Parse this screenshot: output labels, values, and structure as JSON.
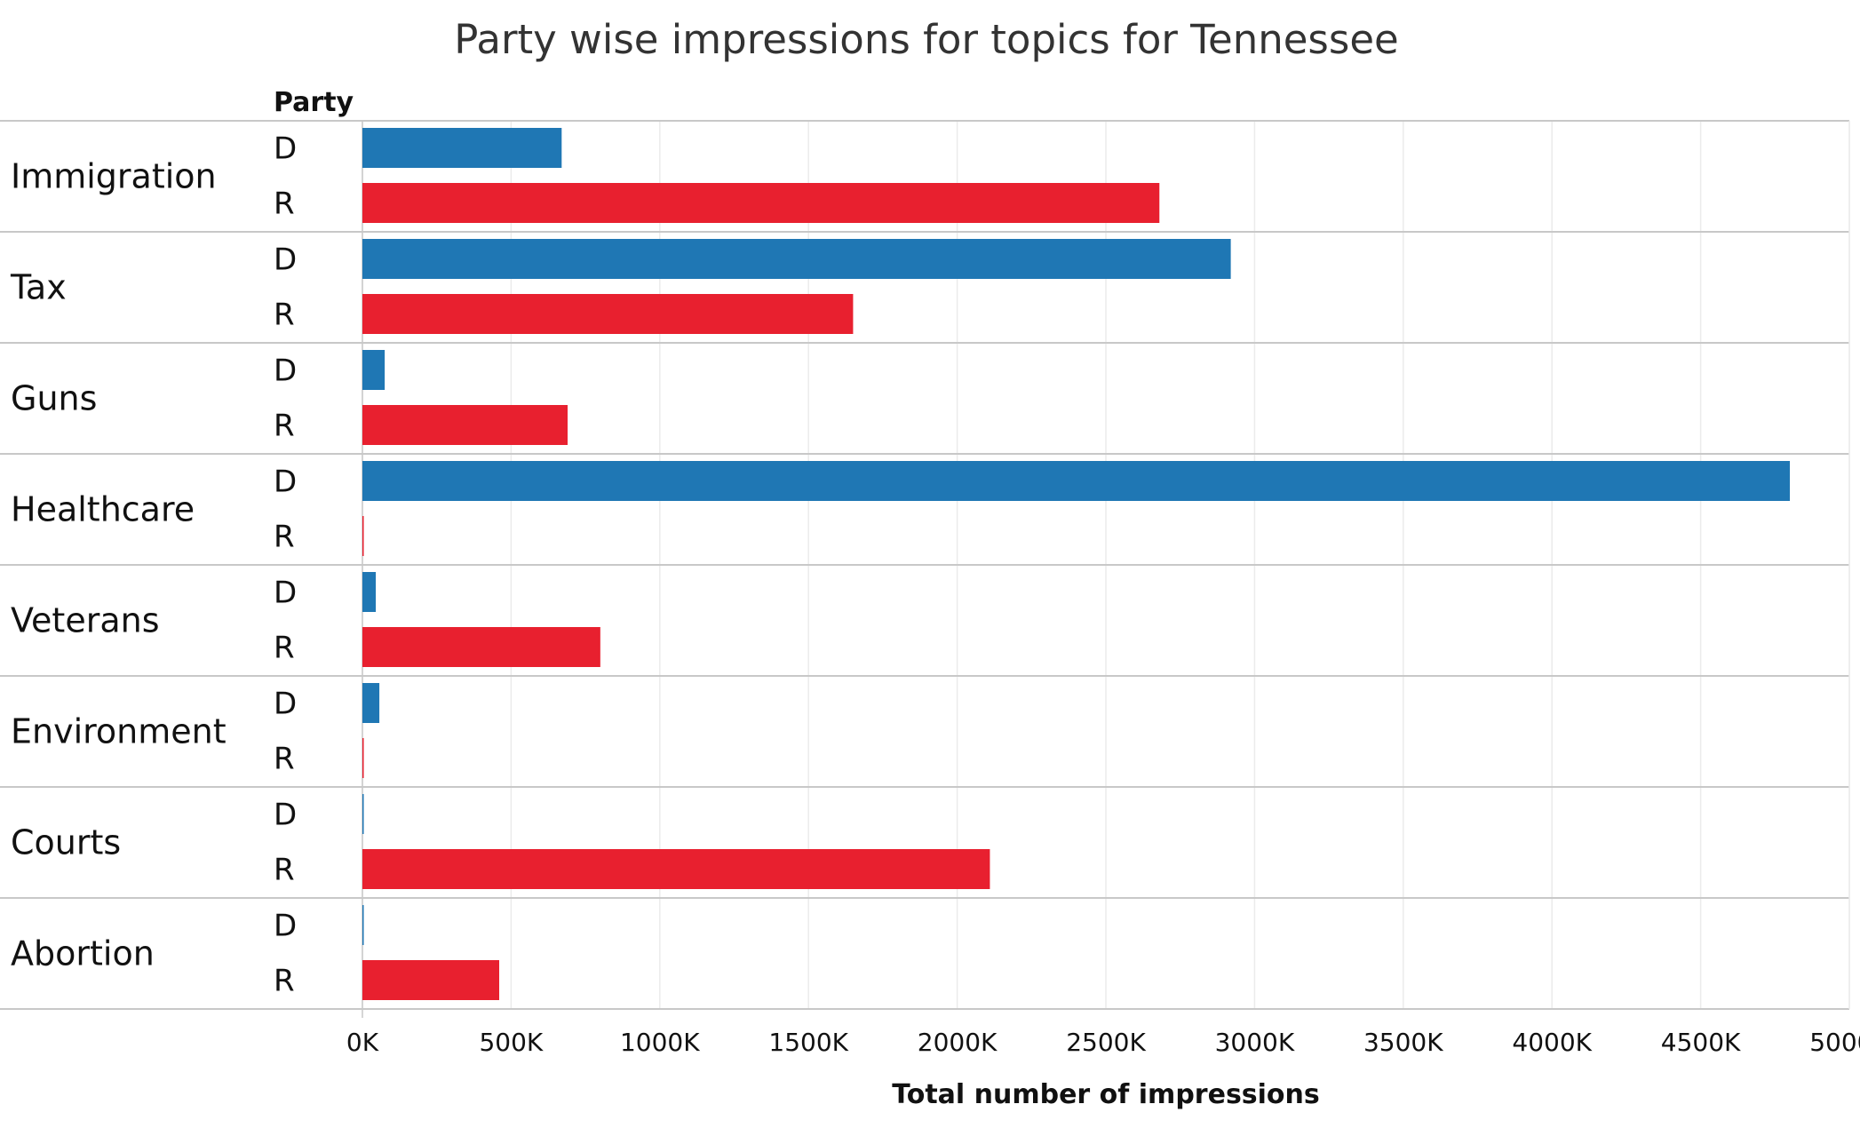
{
  "colors": {
    "D": "#1f77b4",
    "R": "#e8202f",
    "grid": "#ebebeb",
    "divider": "#c8c8c8"
  },
  "chart_data": {
    "type": "bar",
    "orientation": "horizontal",
    "title": "Party wise impressions for topics for  Tennessee",
    "row_header": "Party",
    "xlabel": "Total number of impressions",
    "xlim": [
      0,
      5000
    ],
    "x_unit": "K",
    "x_ticks": [
      "0K",
      "500K",
      "1000K",
      "1500K",
      "2000K",
      "2500K",
      "3000K",
      "3500K",
      "4000K",
      "4500K",
      "5000K"
    ],
    "grid": true,
    "groups": [
      {
        "topic": "Immigration",
        "bars": [
          {
            "party": "D",
            "value": 670
          },
          {
            "party": "R",
            "value": 2680
          }
        ]
      },
      {
        "topic": "Tax",
        "bars": [
          {
            "party": "D",
            "value": 2920
          },
          {
            "party": "R",
            "value": 1650
          }
        ]
      },
      {
        "topic": "Guns",
        "bars": [
          {
            "party": "D",
            "value": 75
          },
          {
            "party": "R",
            "value": 690
          }
        ]
      },
      {
        "topic": "Healthcare",
        "bars": [
          {
            "party": "D",
            "value": 4800
          },
          {
            "party": "R",
            "value": 4
          }
        ]
      },
      {
        "topic": "Veterans",
        "bars": [
          {
            "party": "D",
            "value": 45
          },
          {
            "party": "R",
            "value": 800
          }
        ]
      },
      {
        "topic": "Environment",
        "bars": [
          {
            "party": "D",
            "value": 57
          },
          {
            "party": "R",
            "value": 4
          }
        ]
      },
      {
        "topic": "Courts",
        "bars": [
          {
            "party": "D",
            "value": 4
          },
          {
            "party": "R",
            "value": 2110
          }
        ]
      },
      {
        "topic": "Abortion",
        "bars": [
          {
            "party": "D",
            "value": 4
          },
          {
            "party": "R",
            "value": 460
          }
        ]
      }
    ]
  }
}
